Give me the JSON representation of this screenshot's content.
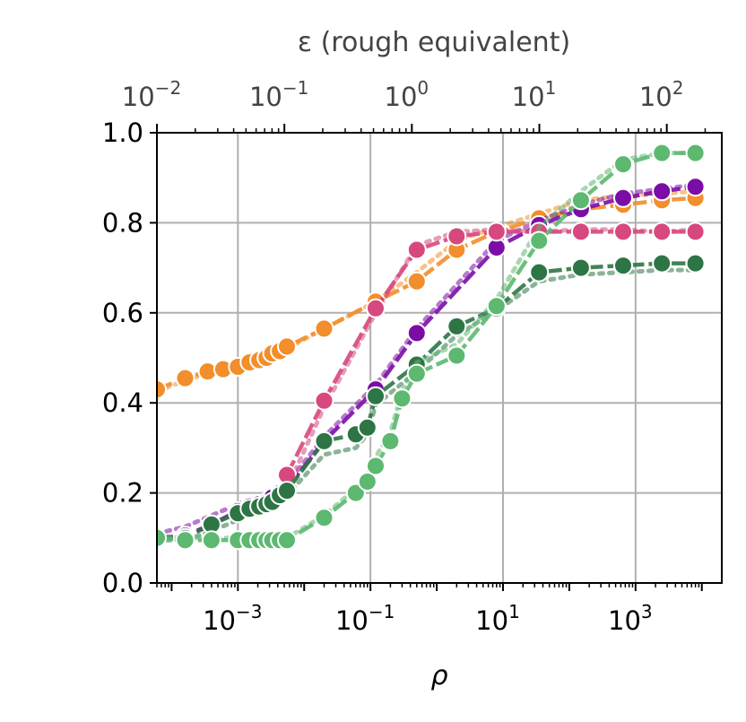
{
  "chart_data": {
    "type": "line",
    "xlabel": "ρ",
    "x_scale": "log",
    "xlim": [
      6e-05,
      20000
    ],
    "x_ticks": [
      {
        "value": 0.001,
        "base": "10",
        "exp": "−3"
      },
      {
        "value": 0.1,
        "base": "10",
        "exp": "−1"
      },
      {
        "value": 10,
        "base": "10",
        "exp": "1"
      },
      {
        "value": 1000,
        "base": "10",
        "exp": "3"
      }
    ],
    "top_axis": {
      "label": "ε (rough equivalent)",
      "scale": "log",
      "xlim": [
        0.01,
        270
      ],
      "ticks": [
        {
          "value": 0.01,
          "base": "10",
          "exp": "−2"
        },
        {
          "value": 0.1,
          "base": "10",
          "exp": "−1"
        },
        {
          "value": 1,
          "base": "10",
          "exp": "0"
        },
        {
          "value": 10,
          "base": "10",
          "exp": "1"
        },
        {
          "value": 100,
          "base": "10",
          "exp": "2"
        }
      ]
    },
    "ylim": [
      0.0,
      1.0
    ],
    "y_ticks": [
      "0.0",
      "0.2",
      "0.4",
      "0.6",
      "0.8",
      "1.0"
    ],
    "grid": true,
    "series": [
      {
        "color": "#f28e2b",
        "x": [
          6e-05,
          0.00016,
          0.00035,
          0.0006,
          0.001,
          0.0015,
          0.0021,
          0.0027,
          0.0033,
          0.0043,
          0.0055,
          0.02,
          0.12,
          0.5,
          2,
          8,
          35,
          150,
          650,
          2500,
          8000
        ],
        "y": [
          0.43,
          0.455,
          0.47,
          0.475,
          0.48,
          0.49,
          0.495,
          0.5,
          0.51,
          0.515,
          0.525,
          0.565,
          0.625,
          0.67,
          0.74,
          0.78,
          0.81,
          0.83,
          0.84,
          0.85,
          0.855
        ],
        "y_dotted": [
          0.425,
          0.45,
          0.465,
          0.47,
          0.475,
          0.485,
          0.49,
          0.495,
          0.505,
          0.51,
          0.52,
          0.565,
          0.625,
          0.69,
          0.76,
          0.79,
          0.82,
          0.85,
          0.86,
          0.865,
          0.87
        ]
      },
      {
        "color": "#7b0da6",
        "x": [
          6e-05,
          0.00016,
          0.0004,
          0.001,
          0.0015,
          0.0021,
          0.0027,
          0.0033,
          0.0043,
          0.0055,
          0.02,
          0.12,
          0.5,
          8,
          35,
          150,
          650,
          2500,
          8000
        ],
        "y": [
          0.1,
          0.105,
          0.13,
          0.16,
          0.17,
          0.175,
          0.18,
          0.19,
          0.2,
          0.21,
          0.315,
          0.43,
          0.555,
          0.745,
          0.795,
          0.83,
          0.855,
          0.87,
          0.88
        ],
        "y_dotted": [
          0.11,
          0.125,
          0.15,
          0.175,
          0.185,
          0.19,
          0.195,
          0.205,
          0.215,
          0.22,
          0.325,
          0.44,
          0.565,
          0.76,
          0.805,
          0.84,
          0.865,
          0.875,
          0.885
        ]
      },
      {
        "color": "#d6487e",
        "x": [
          0.0055,
          0.02,
          0.12,
          0.5,
          2,
          8,
          35,
          150,
          650,
          2500,
          8000
        ],
        "y": [
          0.24,
          0.405,
          0.61,
          0.74,
          0.77,
          0.78,
          0.78,
          0.78,
          0.78,
          0.78,
          0.78
        ],
        "y_dotted": [
          0.21,
          0.39,
          0.6,
          0.75,
          0.78,
          0.785,
          0.78,
          0.785,
          0.785,
          0.78,
          0.785
        ]
      },
      {
        "color": "#2e7545",
        "x": [
          6e-05,
          0.00016,
          0.0004,
          0.001,
          0.0015,
          0.0021,
          0.0027,
          0.0033,
          0.0043,
          0.0055,
          0.02,
          0.06,
          0.09,
          0.12,
          0.5,
          2,
          8,
          35,
          150,
          650,
          2500,
          8000
        ],
        "y": [
          0.1,
          0.1,
          0.13,
          0.155,
          0.165,
          0.17,
          0.175,
          0.18,
          0.195,
          0.205,
          0.315,
          0.33,
          0.345,
          0.415,
          0.485,
          0.57,
          0.61,
          0.69,
          0.7,
          0.705,
          0.71,
          0.71
        ],
        "y_dotted": [
          0.095,
          0.095,
          0.115,
          0.14,
          0.155,
          0.16,
          0.165,
          0.17,
          0.185,
          0.195,
          0.285,
          0.3,
          0.33,
          0.395,
          0.47,
          0.55,
          0.605,
          0.67,
          0.685,
          0.69,
          0.695,
          0.695
        ]
      },
      {
        "color": "#5db870",
        "x": [
          6e-05,
          0.00016,
          0.0004,
          0.001,
          0.0015,
          0.0021,
          0.0027,
          0.0033,
          0.0043,
          0.0055,
          0.02,
          0.06,
          0.09,
          0.12,
          0.2,
          0.3,
          0.5,
          2,
          8,
          35,
          150,
          650,
          2500,
          8000
        ],
        "y": [
          0.1,
          0.095,
          0.095,
          0.095,
          0.095,
          0.095,
          0.095,
          0.095,
          0.095,
          0.095,
          0.145,
          0.2,
          0.225,
          0.26,
          0.315,
          0.41,
          0.465,
          0.505,
          0.615,
          0.76,
          0.85,
          0.93,
          0.955,
          0.955
        ],
        "y_dotted": [
          0.105,
          0.1,
          0.1,
          0.1,
          0.1,
          0.1,
          0.1,
          0.1,
          0.1,
          0.1,
          0.15,
          0.21,
          0.24,
          0.28,
          0.335,
          0.425,
          0.49,
          0.53,
          0.63,
          0.79,
          0.87,
          0.94,
          0.955,
          0.955
        ]
      }
    ]
  }
}
